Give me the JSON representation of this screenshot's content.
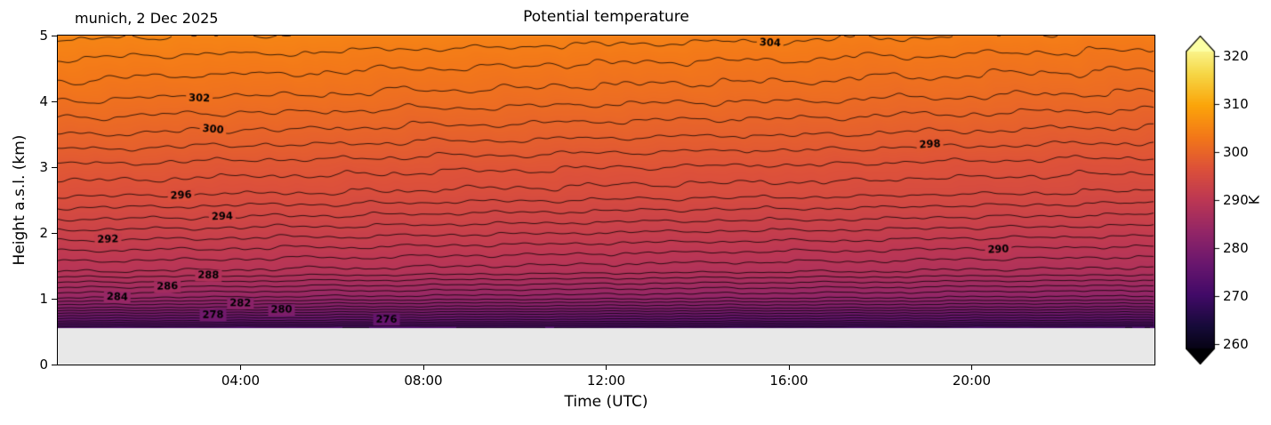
{
  "chart_data": {
    "type": "contour",
    "title": "Potential temperature",
    "corner_label": "munich, 2 Dec 2025",
    "xlabel": "Time (UTC)",
    "ylabel": "Height a.s.l. (km)",
    "x_hours_range": [
      0,
      24
    ],
    "x_ticks": [
      {
        "hour": 4,
        "label": "04:00"
      },
      {
        "hour": 8,
        "label": "08:00"
      },
      {
        "hour": 12,
        "label": "12:00"
      },
      {
        "hour": 16,
        "label": "16:00"
      },
      {
        "hour": 20,
        "label": "20:00"
      }
    ],
    "y_km_range": [
      0,
      5
    ],
    "y_ticks": [
      0,
      1,
      2,
      3,
      4,
      5
    ],
    "ground_level_km": 0.55,
    "theta_trend_K_per_h": -0.06,
    "theta_profile_base_km_K": [
      [
        0.55,
        272.5
      ],
      [
        0.65,
        276.0
      ],
      [
        0.75,
        278.5
      ],
      [
        0.85,
        281.0
      ],
      [
        1.0,
        284.0
      ],
      [
        1.2,
        286.5
      ],
      [
        1.4,
        289.0
      ],
      [
        1.8,
        291.5
      ],
      [
        2.2,
        294.0
      ],
      [
        2.6,
        296.3
      ],
      [
        3.0,
        297.8
      ],
      [
        3.5,
        300.0
      ],
      [
        4.1,
        302.3
      ],
      [
        4.6,
        303.8
      ],
      [
        5.0,
        305.2
      ]
    ],
    "contour_levels": {
      "min": 271,
      "max": 305,
      "step": 1
    },
    "contour_labels": [
      {
        "level": 276,
        "hour": 7.2
      },
      {
        "level": 278,
        "hour": 3.4
      },
      {
        "level": 280,
        "hour": 4.9
      },
      {
        "level": 282,
        "hour": 4.0
      },
      {
        "level": 284,
        "hour": 1.3
      },
      {
        "level": 286,
        "hour": 2.4
      },
      {
        "level": 288,
        "hour": 3.3
      },
      {
        "level": 290,
        "hour": 20.6
      },
      {
        "level": 292,
        "hour": 1.1
      },
      {
        "level": 294,
        "hour": 3.6
      },
      {
        "level": 296,
        "hour": 2.7
      },
      {
        "level": 298,
        "hour": 19.1
      },
      {
        "level": 300,
        "hour": 3.4
      },
      {
        "level": 302,
        "hour": 3.1
      },
      {
        "level": 304,
        "hour": 15.6
      }
    ],
    "colorbar": {
      "label": "K",
      "ticks": [
        260,
        270,
        280,
        290,
        300,
        310,
        320
      ],
      "range": [
        259,
        321
      ],
      "color_scale_range": [
        257,
        323
      ],
      "extend": "both",
      "colormap": "inferno",
      "colormap_stops": [
        [
          0.0,
          "#000004"
        ],
        [
          0.1,
          "#160b39"
        ],
        [
          0.2,
          "#420a68"
        ],
        [
          0.3,
          "#6a176e"
        ],
        [
          0.4,
          "#932667"
        ],
        [
          0.5,
          "#bc3754"
        ],
        [
          0.6,
          "#dd513a"
        ],
        [
          0.7,
          "#f37819"
        ],
        [
          0.8,
          "#fca50a"
        ],
        [
          0.9,
          "#f6d746"
        ],
        [
          1.0,
          "#fcffa4"
        ]
      ]
    },
    "no_data_color": "#e8e8e8",
    "line_color": "#000000"
  }
}
